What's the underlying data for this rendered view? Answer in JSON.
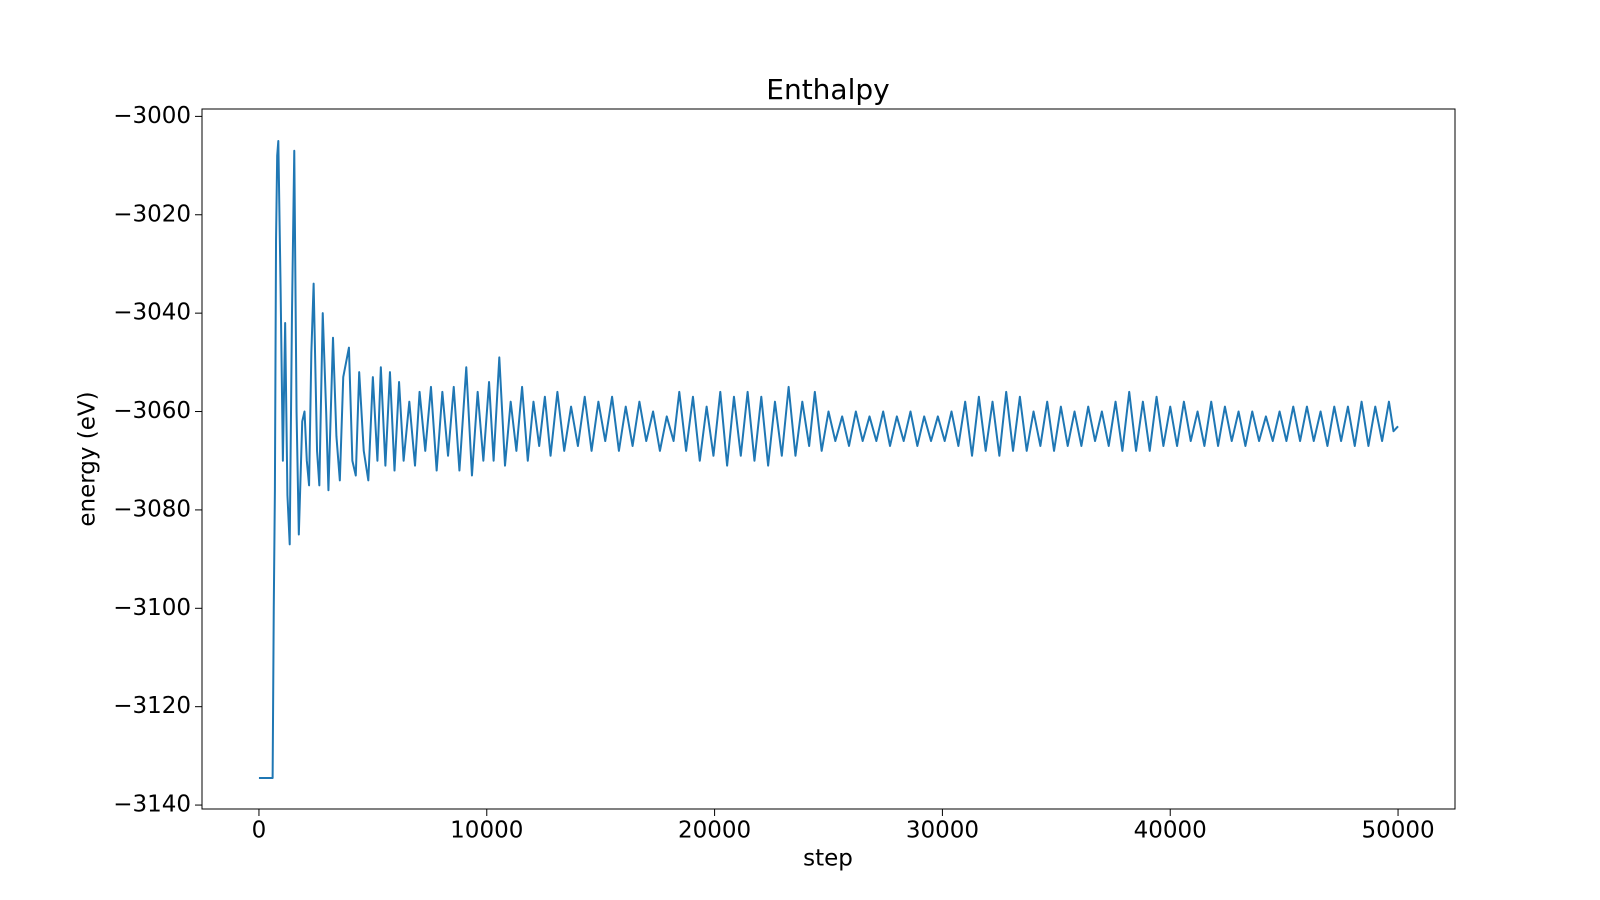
{
  "chart_data": {
    "type": "line",
    "title": "Enthalpy",
    "x_label": "step",
    "y_label": "energy (eV)",
    "xlim": [
      -2500,
      52500
    ],
    "ylim": [
      -3140.8,
      -2998.5
    ],
    "xticks": [
      0,
      10000,
      20000,
      30000,
      40000,
      50000
    ],
    "yticks": [
      {
        "value": -3000,
        "label": "−3000"
      },
      {
        "value": -3020,
        "label": "−3020"
      },
      {
        "value": -3040,
        "label": "−3040"
      },
      {
        "value": -3060,
        "label": "−3060"
      },
      {
        "value": -3080,
        "label": "−3080"
      },
      {
        "value": -3100,
        "label": "−3100"
      },
      {
        "value": -3120,
        "label": "−3120"
      },
      {
        "value": -3140,
        "label": "−3140"
      }
    ],
    "color": "#1f77b4",
    "x": [
      0,
      600,
      650,
      700,
      750,
      800,
      850,
      950,
      1050,
      1150,
      1250,
      1350,
      1450,
      1550,
      1650,
      1750,
      1900,
      2000,
      2100,
      2200,
      2300,
      2400,
      2550,
      2650,
      2800,
      2950,
      3050,
      3250,
      3400,
      3550,
      3700,
      3950,
      4100,
      4250,
      4400,
      4600,
      4800,
      5000,
      5200,
      5350,
      5550,
      5750,
      5950,
      6150,
      6350,
      6600,
      6850,
      7050,
      7300,
      7550,
      7800,
      8050,
      8300,
      8550,
      8800,
      9100,
      9350,
      9600,
      9850,
      10100,
      10300,
      10550,
      10800,
      11050,
      11300,
      11550,
      11800,
      12050,
      12300,
      12550,
      12800,
      13100,
      13400,
      13700,
      14000,
      14300,
      14600,
      14900,
      15200,
      15500,
      15800,
      16100,
      16400,
      16700,
      17000,
      17300,
      17600,
      17900,
      18200,
      18450,
      18750,
      19050,
      19350,
      19650,
      19950,
      20250,
      20550,
      20850,
      21150,
      21450,
      21750,
      22050,
      22350,
      22650,
      22950,
      23250,
      23550,
      23850,
      24150,
      24400,
      24700,
      25000,
      25300,
      25600,
      25900,
      26200,
      26500,
      26800,
      27100,
      27400,
      27700,
      28000,
      28300,
      28600,
      28900,
      29200,
      29500,
      29800,
      30100,
      30400,
      30700,
      31000,
      31300,
      31600,
      31900,
      32200,
      32500,
      32800,
      33100,
      33400,
      33700,
      34000,
      34300,
      34600,
      34900,
      35200,
      35500,
      35800,
      36100,
      36400,
      36700,
      37000,
      37300,
      37600,
      37900,
      38200,
      38500,
      38800,
      39100,
      39400,
      39700,
      40000,
      40300,
      40600,
      40900,
      41200,
      41500,
      41800,
      42100,
      42400,
      42700,
      43000,
      43300,
      43600,
      43900,
      44200,
      44500,
      44800,
      45100,
      45400,
      45700,
      46000,
      46300,
      46600,
      46900,
      47200,
      47500,
      47800,
      48100,
      48400,
      48700,
      49000,
      49300,
      49600,
      49800,
      50000
    ],
    "values": [
      -3134.5,
      -3134.5,
      -3100,
      -3076,
      -3025,
      -3008,
      -3005,
      -3035,
      -3070,
      -3042,
      -3077,
      -3087,
      -3040,
      -3007,
      -3060,
      -3085,
      -3062,
      -3060,
      -3070,
      -3075,
      -3048,
      -3034,
      -3068,
      -3075,
      -3040,
      -3060,
      -3076,
      -3045,
      -3065,
      -3074,
      -3053,
      -3047,
      -3070,
      -3073,
      -3052,
      -3068,
      -3074,
      -3053,
      -3070,
      -3051,
      -3071,
      -3052,
      -3072,
      -3054,
      -3070,
      -3058,
      -3071,
      -3056,
      -3068,
      -3055,
      -3072,
      -3056,
      -3069,
      -3055,
      -3072,
      -3051,
      -3073,
      -3056,
      -3070,
      -3054,
      -3070,
      -3049,
      -3071,
      -3058,
      -3068,
      -3055,
      -3070,
      -3058,
      -3067,
      -3057,
      -3069,
      -3056,
      -3068,
      -3059,
      -3067,
      -3057,
      -3068,
      -3058,
      -3066,
      -3057,
      -3068,
      -3059,
      -3067,
      -3058,
      -3066,
      -3060,
      -3068,
      -3061,
      -3066,
      -3056,
      -3068,
      -3057,
      -3070,
      -3059,
      -3069,
      -3056,
      -3071,
      -3057,
      -3069,
      -3056,
      -3070,
      -3057,
      -3071,
      -3058,
      -3069,
      -3055,
      -3069,
      -3058,
      -3067,
      -3056,
      -3068,
      -3060,
      -3066,
      -3061,
      -3067,
      -3060,
      -3066,
      -3061,
      -3066,
      -3060,
      -3067,
      -3061,
      -3066,
      -3060,
      -3067,
      -3061,
      -3066,
      -3061,
      -3066,
      -3060,
      -3067,
      -3058,
      -3069,
      -3057,
      -3068,
      -3058,
      -3069,
      -3056,
      -3068,
      -3057,
      -3068,
      -3060,
      -3067,
      -3058,
      -3068,
      -3059,
      -3067,
      -3060,
      -3067,
      -3059,
      -3066,
      -3060,
      -3067,
      -3058,
      -3068,
      -3056,
      -3068,
      -3058,
      -3068,
      -3057,
      -3067,
      -3059,
      -3067,
      -3058,
      -3066,
      -3060,
      -3067,
      -3058,
      -3067,
      -3059,
      -3066,
      -3060,
      -3067,
      -3060,
      -3066,
      -3061,
      -3066,
      -3060,
      -3066,
      -3059,
      -3066,
      -3059,
      -3066,
      -3060,
      -3067,
      -3059,
      -3066,
      -3059,
      -3067,
      -3058,
      -3067,
      -3059,
      -3066,
      -3058,
      -3064,
      -3063
    ]
  }
}
